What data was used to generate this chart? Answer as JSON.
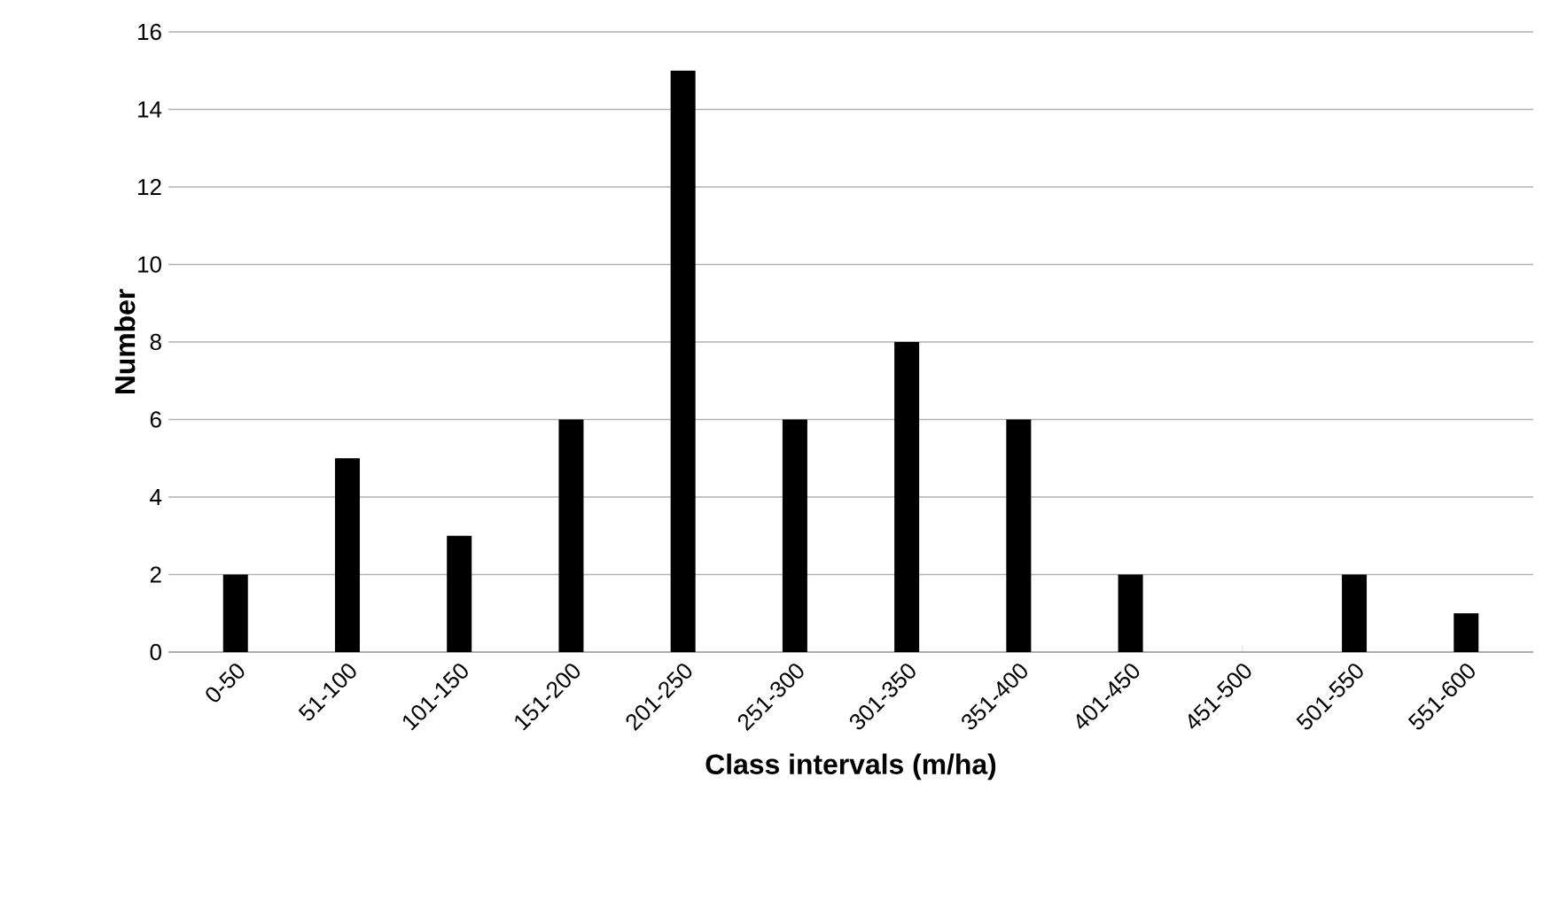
{
  "chart_data": {
    "type": "bar",
    "xlabel": "Class intervals (m/ha)",
    "ylabel": "Number",
    "categories": [
      "0-50",
      "51-100",
      "101-150",
      "151-200",
      "201-250",
      "251-300",
      "301-350",
      "351-400",
      "401-450",
      "451-500",
      "501-550",
      "551-600"
    ],
    "values": [
      2,
      5,
      3,
      6,
      15,
      6,
      8,
      6,
      2,
      0,
      2,
      1
    ],
    "color": "#000000",
    "ylim": [
      0,
      16
    ],
    "yticks": [
      0,
      2,
      4,
      6,
      8,
      10,
      12,
      14,
      16
    ],
    "grid": "y"
  }
}
